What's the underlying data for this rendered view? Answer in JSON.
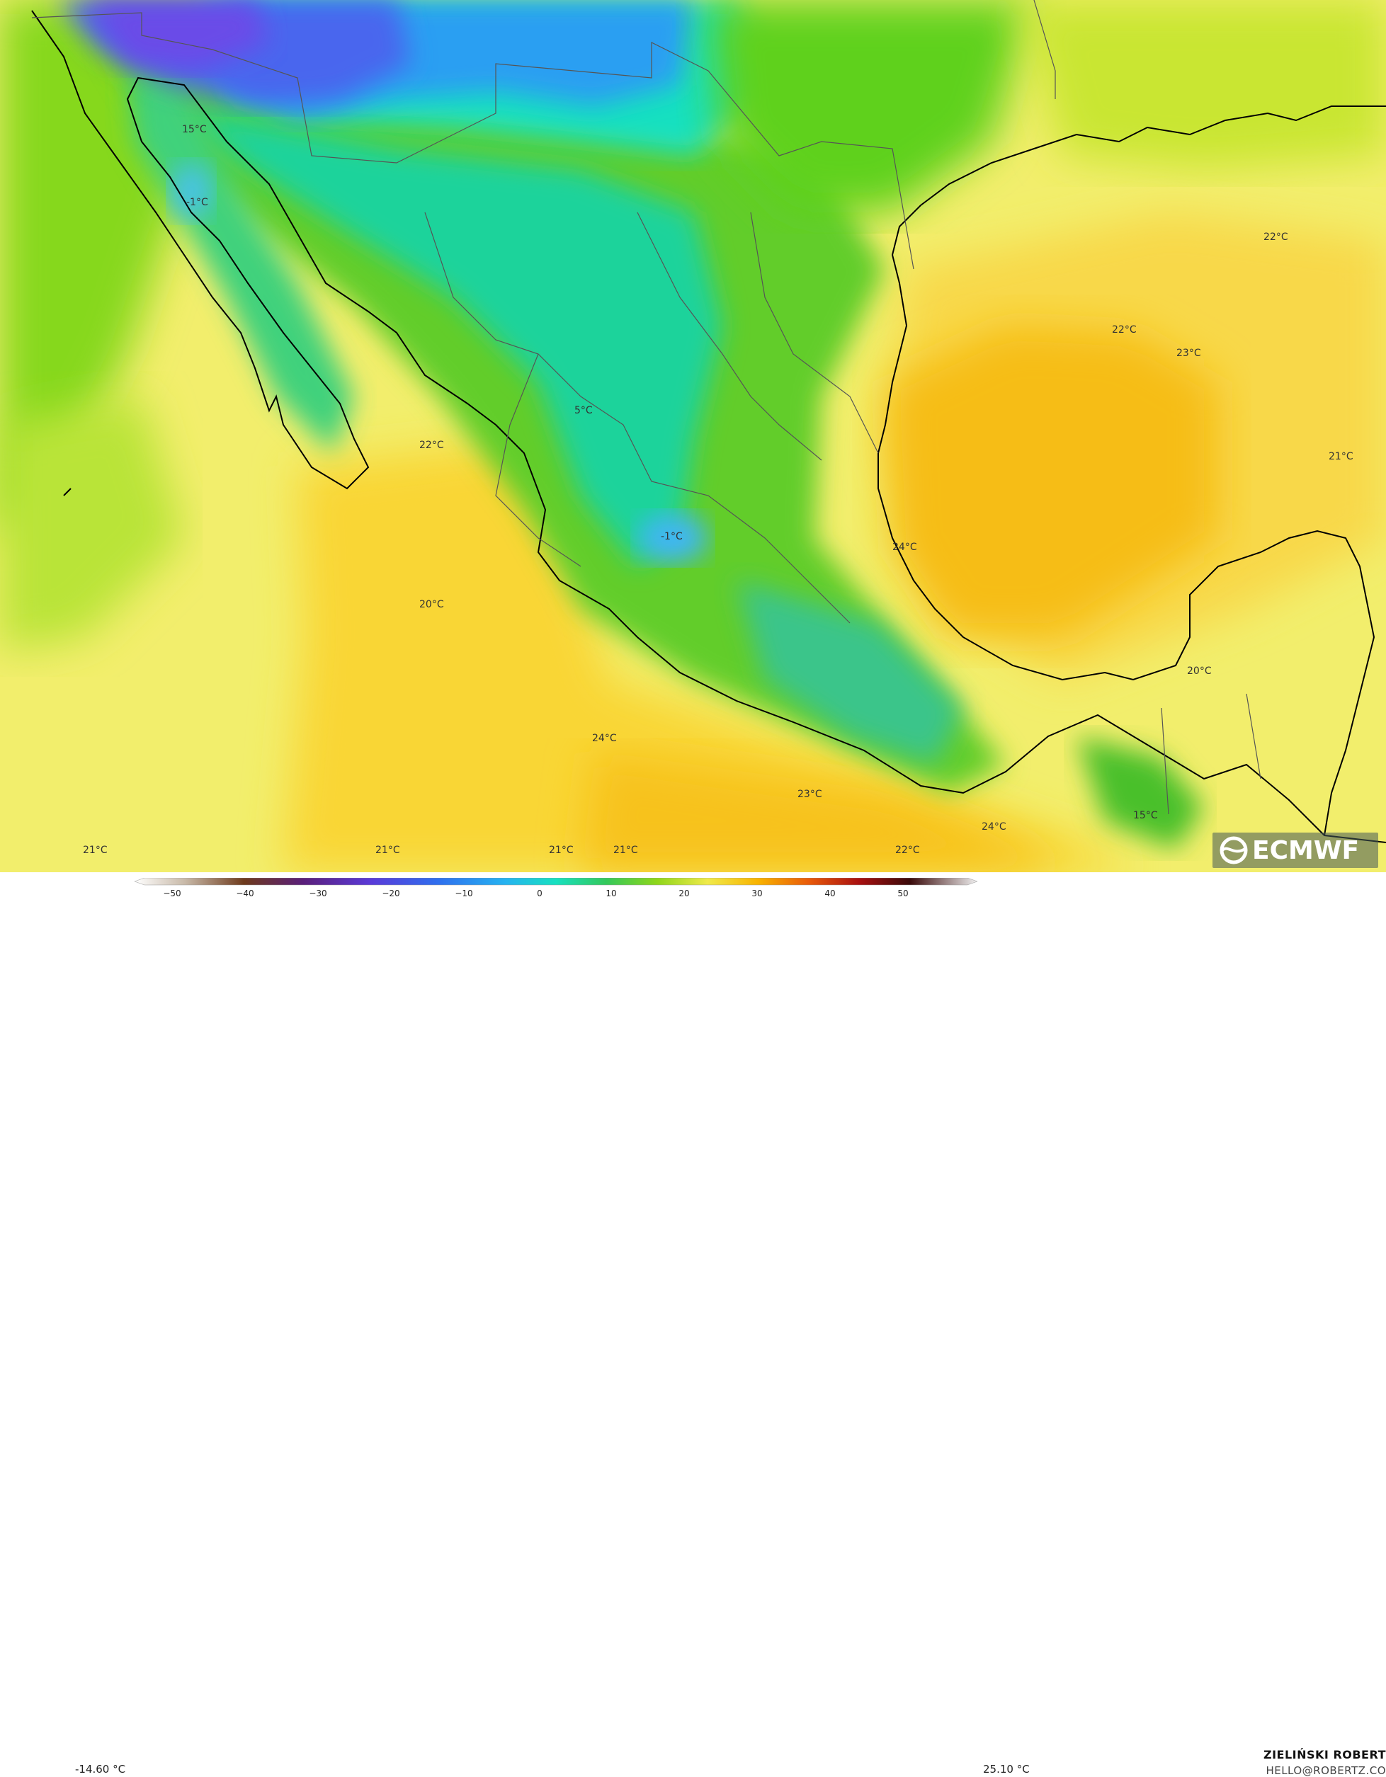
{
  "map": {
    "temperature_labels": [
      "15°C",
      "-1°C",
      "5°C",
      "-1°C",
      "22°C",
      "20°C",
      "24°C",
      "22°C",
      "22°C",
      "23°C",
      "21°C",
      "24°C",
      "20°C",
      "23°C",
      "24°C",
      "22°C",
      "15°C",
      "21°C",
      "21°C",
      "21°C",
      "21°C"
    ],
    "colors": {
      "ocean_yellow": "#f2ee6c",
      "warm_orange": "#f7b300",
      "green": "#57cf2a",
      "teal": "#1ed6a0",
      "blue": "#2f7ff0",
      "violet": "#6a4be8",
      "coast": "#000000"
    }
  },
  "colorbar": {
    "min_label": "-14.60 °C",
    "max_label": "25.10 °C",
    "ticks": [
      "−50",
      "−40",
      "−30",
      "−20",
      "−10",
      "0",
      "10",
      "20",
      "30",
      "40",
      "50"
    ]
  },
  "credit": {
    "name": "ZIELIŃSKI ROBERT",
    "email": "HELLO@ROBERTZ.CO"
  },
  "logo": {
    "text": "ECMWF"
  }
}
